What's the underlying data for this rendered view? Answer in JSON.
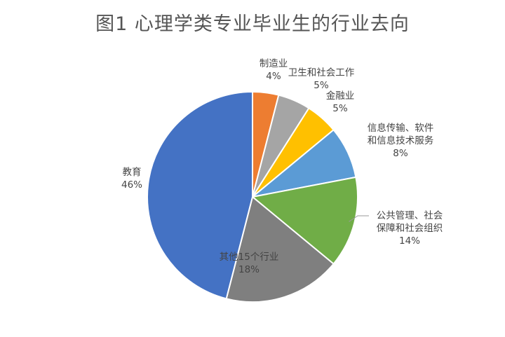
{
  "chart_data": {
    "type": "pie",
    "title": "图1  心理学类专业毕业生的行业去向",
    "start_angle_deg": 0,
    "direction": "clockwise",
    "slices": [
      {
        "name": "制造业",
        "value": 4,
        "label": "4%",
        "color": "#ED7D31"
      },
      {
        "name": "卫生和社会工作",
        "value": 5,
        "label": "5%",
        "color": "#A5A5A5"
      },
      {
        "name": "金融业",
        "value": 5,
        "label": "5%",
        "color": "#FFC000"
      },
      {
        "name": "信息传输、软件和信息技术服务",
        "label_lines": [
          "信息传输、软件",
          "和信息技术服务"
        ],
        "value": 8,
        "label": "8%",
        "color": "#5B9BD5"
      },
      {
        "name": "公共管理、社会保障和社会组织",
        "label_lines": [
          "公共管理、社会",
          "保障和社会组织"
        ],
        "value": 14,
        "label": "14%",
        "color": "#70AD47"
      },
      {
        "name": "其他15个行业",
        "value": 18,
        "label": "18%",
        "color": "#7F7F7F"
      },
      {
        "name": "教育",
        "value": 46,
        "label": "46%",
        "color": "#4472C4"
      }
    ]
  }
}
